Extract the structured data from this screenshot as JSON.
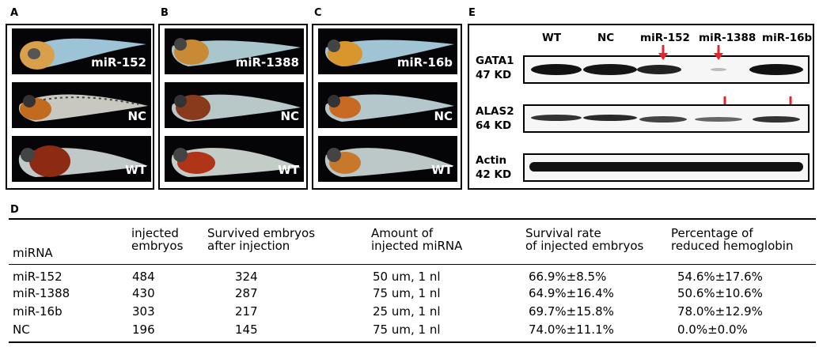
{
  "panels": {
    "A": "A",
    "B": "B",
    "C": "C",
    "D": "D",
    "E": "E"
  },
  "embryo_panels": [
    {
      "labels": [
        "miR-152",
        "NC",
        "WT"
      ]
    },
    {
      "labels": [
        "miR-1388",
        "NC",
        "WT"
      ]
    },
    {
      "labels": [
        "miR-16b",
        "NC",
        "WT"
      ]
    }
  ],
  "western_blot": {
    "lanes": [
      "WT",
      "NC",
      "miR-152",
      "miR-1388",
      "miR-16b"
    ],
    "proteins": [
      {
        "name": "GATA1",
        "size": "47 KD"
      },
      {
        "name": "ALAS2",
        "size": "64 KD"
      },
      {
        "name": "Actin",
        "size": "42 KD"
      }
    ]
  },
  "table": {
    "headers": {
      "mirna": "miRNA",
      "injected_1": "injected",
      "injected_2": "embryos",
      "survived_1": "Survived embryos",
      "survived_2": "after injection",
      "amount_1": "Amount of",
      "amount_2": "injected miRNA",
      "rate_1": "Survival rate",
      "rate_2": "of injected embryos",
      "pct_1": "Percentage of",
      "pct_2": "reduced hemoglobin"
    },
    "rows": [
      {
        "mirna": "miR-152",
        "injected": "484",
        "survived": "324",
        "amount": "50 um, 1 nl",
        "rate": "66.9%±8.5%",
        "pct": "54.6%±17.6%"
      },
      {
        "mirna": "miR-1388",
        "injected": "430",
        "survived": "287",
        "amount": "75 um, 1 nl",
        "rate": "64.9%±16.4%",
        "pct": "50.6%±10.6%"
      },
      {
        "mirna": "miR-16b",
        "injected": "303",
        "survived": "217",
        "amount": "25 um, 1 nl",
        "rate": "69.7%±15.8%",
        "pct": "78.0%±12.9%"
      },
      {
        "mirna": "NC",
        "injected": "196",
        "survived": "145",
        "amount": "75 um, 1 nl",
        "rate": "74.0%±11.1%",
        "pct": "0.0%±0.0%"
      }
    ]
  }
}
